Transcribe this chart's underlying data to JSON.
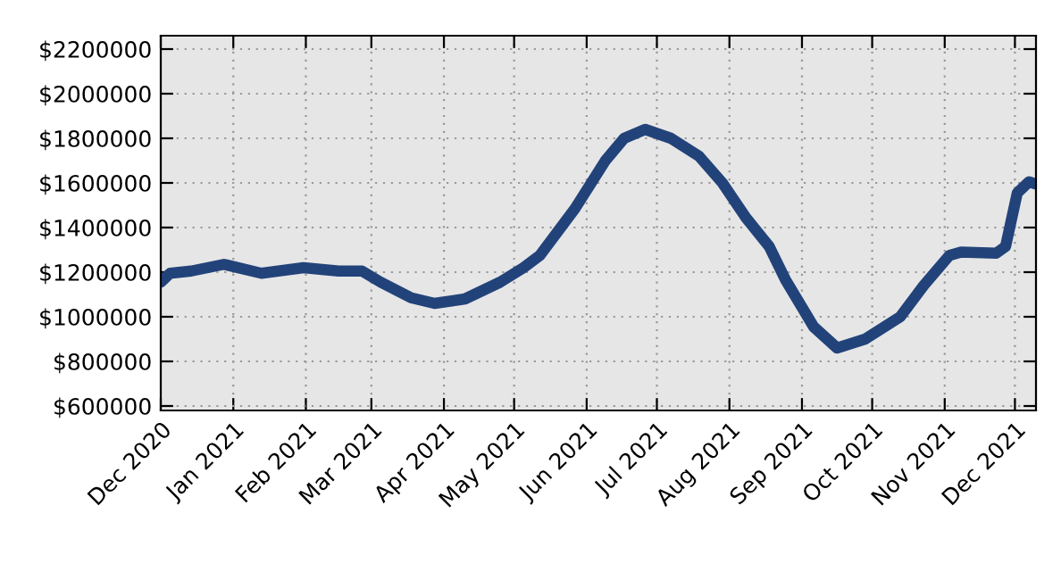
{
  "chart_data": {
    "type": "line",
    "x": [
      "2020-12-01",
      "2020-12-05",
      "2020-12-14",
      "2020-12-28",
      "2021-01-13",
      "2021-01-31",
      "2021-02-15",
      "2021-02-25",
      "2021-03-05",
      "2021-03-18",
      "2021-03-28",
      "2021-04-10",
      "2021-04-25",
      "2021-05-05",
      "2021-05-12",
      "2021-05-27",
      "2021-06-09",
      "2021-06-17",
      "2021-06-26",
      "2021-07-07",
      "2021-07-19",
      "2021-07-29",
      "2021-08-08",
      "2021-08-18",
      "2021-08-25",
      "2021-09-06",
      "2021-09-16",
      "2021-09-28",
      "2021-10-13",
      "2021-10-23",
      "2021-11-03",
      "2021-11-08",
      "2021-11-23",
      "2021-11-27",
      "2021-12-02",
      "2021-12-07",
      "2021-12-10"
    ],
    "series": [
      {
        "color": "#22437a",
        "values": [
          1155000,
          1195000,
          1205000,
          1235000,
          1195000,
          1220000,
          1205000,
          1205000,
          1155000,
          1085000,
          1060000,
          1080000,
          1155000,
          1220000,
          1275000,
          1485000,
          1700000,
          1800000,
          1840000,
          1800000,
          1720000,
          1600000,
          1445000,
          1315000,
          1165000,
          955000,
          860000,
          900000,
          1000000,
          1140000,
          1275000,
          1290000,
          1285000,
          1315000,
          1555000,
          1605000,
          1595000
        ]
      }
    ],
    "xlim": [
      "2020-12-01",
      "2021-12-10"
    ],
    "xticks": [
      {
        "value": "2020-12-01",
        "label": "Dec 2020"
      },
      {
        "value": "2021-01-01",
        "label": "Jan 2021"
      },
      {
        "value": "2021-02-01",
        "label": "Feb 2021"
      },
      {
        "value": "2021-03-01",
        "label": "Mar 2021"
      },
      {
        "value": "2021-04-01",
        "label": "Apr 2021"
      },
      {
        "value": "2021-05-01",
        "label": "May 2021"
      },
      {
        "value": "2021-06-01",
        "label": "Jun 2021"
      },
      {
        "value": "2021-07-01",
        "label": "Jul 2021"
      },
      {
        "value": "2021-08-01",
        "label": "Aug 2021"
      },
      {
        "value": "2021-09-01",
        "label": "Sep 2021"
      },
      {
        "value": "2021-10-01",
        "label": "Oct 2021"
      },
      {
        "value": "2021-11-01",
        "label": "Nov 2021"
      },
      {
        "value": "2021-12-01",
        "label": "Dec 2021"
      }
    ],
    "ylim": [
      580000,
      2260000
    ],
    "yticks": [
      {
        "value": 600000,
        "label": "$600000"
      },
      {
        "value": 800000,
        "label": "$800000"
      },
      {
        "value": 1000000,
        "label": "$1000000"
      },
      {
        "value": 1200000,
        "label": "$1200000"
      },
      {
        "value": 1400000,
        "label": "$1400000"
      },
      {
        "value": 1600000,
        "label": "$1600000"
      },
      {
        "value": 1800000,
        "label": "$1800000"
      },
      {
        "value": 2000000,
        "label": "$2000000"
      },
      {
        "value": 2200000,
        "label": "$2200000"
      }
    ],
    "grid": true,
    "marker": "none",
    "line_style": "solid"
  }
}
